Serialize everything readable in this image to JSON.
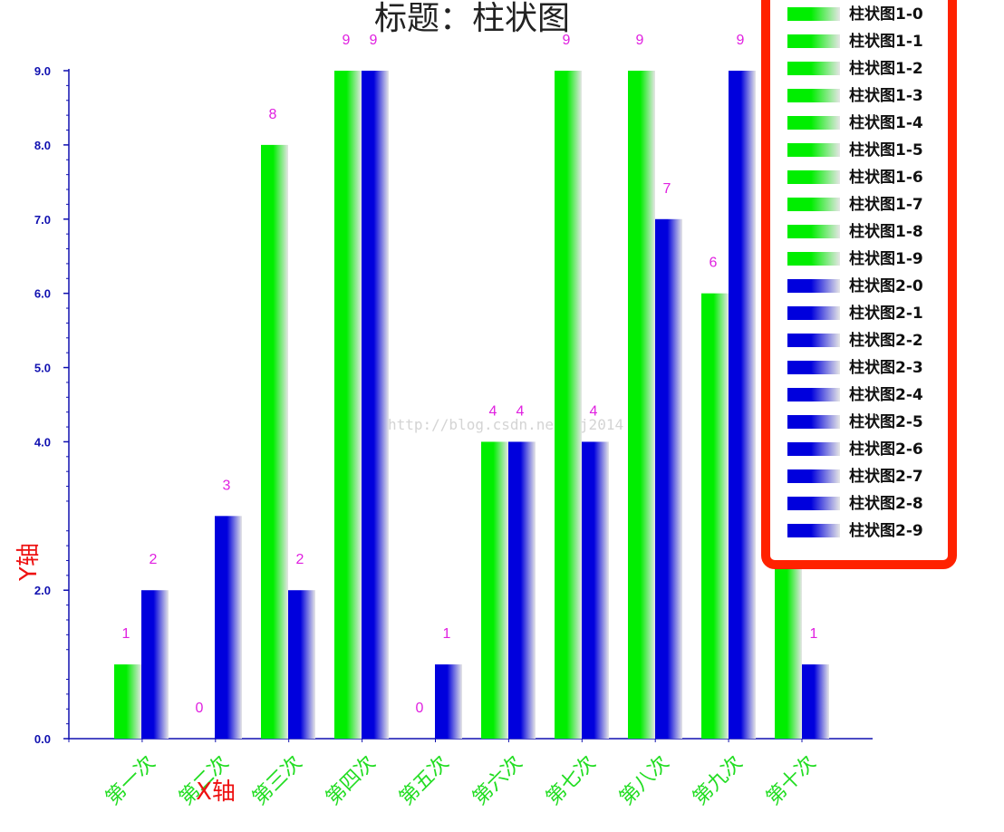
{
  "chart_data": {
    "type": "bar",
    "title": "标题：柱状图",
    "xlabel": "X轴",
    "ylabel": "Y轴",
    "ylim": [
      0,
      9
    ],
    "y_tick_labels": [
      "0.0",
      "2.0",
      "4.0",
      "5.0",
      "6.0",
      "7.0",
      "8.0",
      "9.0"
    ],
    "categories": [
      "第一次",
      "第二次",
      "第三次",
      "第四次",
      "第五次",
      "第六次",
      "第七次",
      "第八次",
      "第九次",
      "第十次"
    ],
    "series": [
      {
        "values": [
          1,
          0,
          8,
          9,
          0,
          4,
          9,
          9,
          6,
          5
        ]
      },
      {
        "values": [
          2,
          3,
          2,
          9,
          1,
          4,
          4,
          7,
          9,
          1
        ]
      }
    ],
    "colors": {
      "series1": "#00ee00",
      "series2": "#0000dd",
      "legend_border": "#ff2200"
    },
    "legend": {
      "position": "top-right",
      "entries": [
        {
          "label": "柱状图1-0",
          "series": 0
        },
        {
          "label": "柱状图1-1",
          "series": 0
        },
        {
          "label": "柱状图1-2",
          "series": 0
        },
        {
          "label": "柱状图1-3",
          "series": 0
        },
        {
          "label": "柱状图1-4",
          "series": 0
        },
        {
          "label": "柱状图1-5",
          "series": 0
        },
        {
          "label": "柱状图1-6",
          "series": 0
        },
        {
          "label": "柱状图1-7",
          "series": 0
        },
        {
          "label": "柱状图1-8",
          "series": 0
        },
        {
          "label": "柱状图1-9",
          "series": 0
        },
        {
          "label": "柱状图2-0",
          "series": 1
        },
        {
          "label": "柱状图2-1",
          "series": 1
        },
        {
          "label": "柱状图2-2",
          "series": 1
        },
        {
          "label": "柱状图2-3",
          "series": 1
        },
        {
          "label": "柱状图2-4",
          "series": 1
        },
        {
          "label": "柱状图2-5",
          "series": 1
        },
        {
          "label": "柱状图2-6",
          "series": 1
        },
        {
          "label": "柱状图2-7",
          "series": 1
        },
        {
          "label": "柱状图2-8",
          "series": 1
        },
        {
          "label": "柱状图2-9",
          "series": 1
        }
      ]
    },
    "watermark": "http://blog.csdn.net/xj2014"
  }
}
